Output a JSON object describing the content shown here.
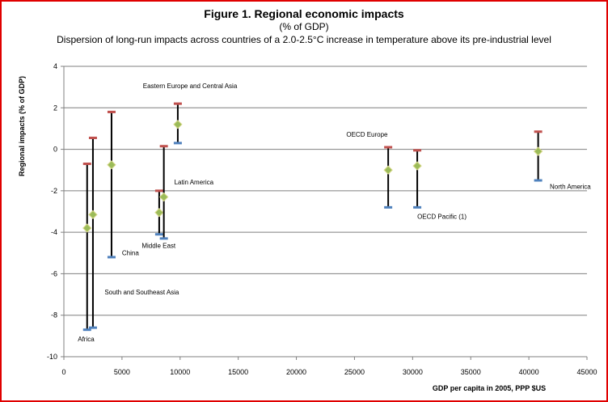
{
  "chart_data": {
    "type": "scatter",
    "title": "Figure 1. Regional economic impacts",
    "subtitle": "(% of GDP)",
    "subtitle2": "Dispersion of long-run impacts across countries of a 2.0-2.5°C increase in temperature above its pre-industrial level",
    "xlabel": "GDP per capita in 2005, PPP $US",
    "ylabel": "Regional impacts (% of GDP)",
    "xlim": [
      0,
      45000
    ],
    "ylim": [
      -10,
      4
    ],
    "xticks": [
      0,
      5000,
      10000,
      15000,
      20000,
      25000,
      30000,
      35000,
      40000,
      45000
    ],
    "yticks": [
      4,
      2,
      0,
      -2,
      -4,
      -6,
      -8,
      -10
    ],
    "grid": "horizontal",
    "colors": {
      "max": "#c0504d",
      "min": "#4f81bd",
      "median": "#9bbb59",
      "median_edge": "#d9d98c",
      "range": "#000000",
      "grid": "#7f7f7f"
    },
    "points": [
      {
        "x": 2000,
        "max": -0.7,
        "min": -8.7,
        "median": -3.8
      },
      {
        "x": 2500,
        "max": 0.55,
        "min": -8.6,
        "median": -3.15
      },
      {
        "x": 4100,
        "max": 1.8,
        "min": -5.2,
        "median": -0.75
      },
      {
        "x": 8200,
        "max": -2.0,
        "min": -4.1,
        "median": -3.05
      },
      {
        "x": 8600,
        "max": 0.15,
        "min": -4.3,
        "median": -2.3
      },
      {
        "x": 9800,
        "max": 2.2,
        "min": 0.3,
        "median": 1.2
      },
      {
        "x": 27900,
        "max": 0.1,
        "min": -2.8,
        "median": -1.0
      },
      {
        "x": 30400,
        "max": -0.05,
        "min": -2.8,
        "median": -0.8
      },
      {
        "x": 40800,
        "max": 0.85,
        "min": -1.5,
        "median": -0.1
      }
    ],
    "annotations": [
      {
        "text": "Africa",
        "x": 1200,
        "y": -9.25
      },
      {
        "text": "South and Southeast Asia",
        "x": 3500,
        "y": -7.0
      },
      {
        "text": "China",
        "x": 5000,
        "y": -5.1
      },
      {
        "text": "Middle East",
        "x": 6700,
        "y": -4.75
      },
      {
        "text": "Latin America",
        "x": 9500,
        "y": -1.7
      },
      {
        "text": "Eastern Europe and Central Asia",
        "x": 6800,
        "y": 2.95
      },
      {
        "text": "OECD Europe",
        "x": 24300,
        "y": 0.6
      },
      {
        "text": "OECD Pacific (1)",
        "x": 30400,
        "y": -3.35
      },
      {
        "text": "North America",
        "x": 41800,
        "y": -1.9
      }
    ]
  }
}
